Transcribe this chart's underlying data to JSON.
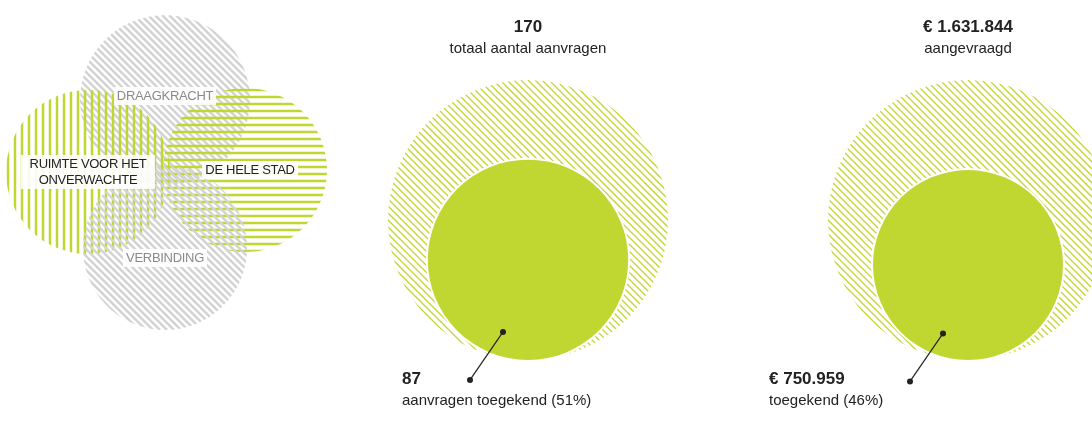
{
  "chart_data": [
    {
      "type": "other",
      "categories": [
        "DRAAGKRACHT",
        "RUIMTE VOOR HET ONVERWACHTE",
        "DE HELE STAD",
        "VERBINDING"
      ],
      "colors": [
        "#d4d4d4",
        "#bfd730",
        "#bfd730",
        "#d4d4d4"
      ]
    },
    {
      "type": "other",
      "categories": [
        "totaal aantal aanvragen",
        "aanvragen toegekend (51%)"
      ],
      "values": [
        170,
        87
      ],
      "value_labels": [
        "170",
        "87"
      ],
      "colors": [
        "#bfd730",
        "#bfd730"
      ]
    },
    {
      "type": "other",
      "categories": [
        "aangevraagd",
        "toegekend (46%)"
      ],
      "values": [
        1631844,
        750959
      ],
      "value_labels": [
        "€ 1.631.844",
        "€ 750.959"
      ],
      "colors": [
        "#bfd730",
        "#bfd730"
      ]
    }
  ]
}
